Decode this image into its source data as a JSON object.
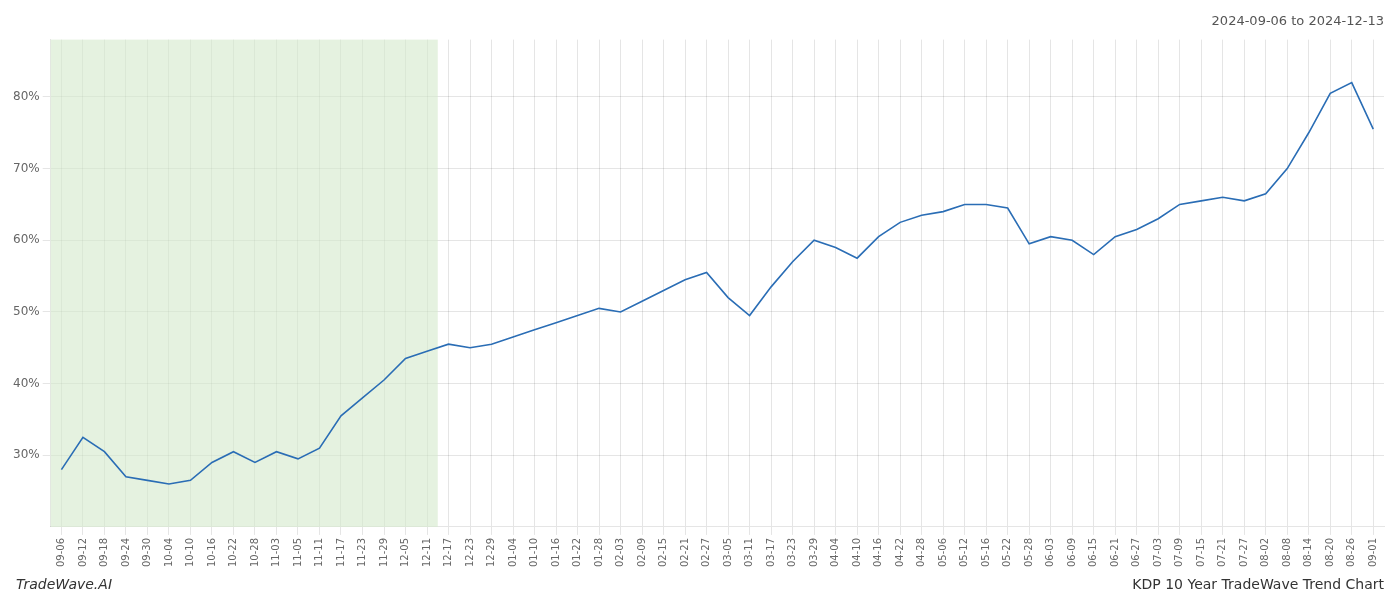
{
  "chart_data": {
    "type": "line",
    "title": "2024-09-06 to 2024-12-13",
    "annotations": [
      "TradeWave.AI",
      "KDP 10 Year TradeWave Trend Chart"
    ],
    "categories": [
      "09-06",
      "09-12",
      "09-18",
      "09-24",
      "09-30",
      "10-04",
      "10-10",
      "10-16",
      "10-22",
      "10-28",
      "11-03",
      "11-05",
      "11-11",
      "11-17",
      "11-23",
      "11-29",
      "12-05",
      "12-11",
      "12-17",
      "12-23",
      "12-29",
      "01-04",
      "01-10",
      "01-16",
      "01-22",
      "01-28",
      "02-03",
      "02-09",
      "02-15",
      "02-21",
      "02-27",
      "03-05",
      "03-11",
      "03-17",
      "03-23",
      "03-29",
      "04-04",
      "04-10",
      "04-16",
      "04-22",
      "04-28",
      "05-06",
      "05-12",
      "05-16",
      "05-22",
      "05-28",
      "06-03",
      "06-09",
      "06-15",
      "06-21",
      "06-27",
      "07-03",
      "07-09",
      "07-15",
      "07-21",
      "07-27",
      "08-02",
      "08-08",
      "08-14",
      "08-20",
      "08-26",
      "09-01"
    ],
    "values": [
      28.0,
      32.5,
      30.5,
      27.0,
      26.5,
      26.0,
      26.5,
      29.0,
      30.5,
      29.0,
      30.5,
      29.5,
      31.0,
      35.5,
      38.0,
      40.5,
      43.5,
      44.5,
      45.5,
      45.0,
      45.5,
      46.5,
      47.5,
      48.5,
      49.5,
      50.5,
      50.0,
      51.5,
      53.0,
      54.5,
      55.5,
      52.0,
      49.5,
      53.5,
      57.0,
      60.0,
      59.0,
      57.5,
      60.5,
      62.5,
      63.5,
      64.0,
      65.0,
      65.0,
      64.5,
      59.5,
      60.5,
      60.0,
      58.0,
      60.5,
      61.5,
      63.0,
      65.0,
      65.5,
      66.0,
      65.5,
      66.5,
      70.0,
      75.0,
      80.5,
      82.0,
      75.5
    ],
    "color": "#2a6db5",
    "shaded_range": {
      "from": "09-06",
      "to": "12-11",
      "color": "#d4eacc"
    },
    "ylim": [
      20,
      88
    ],
    "yticks": [
      {
        "value": 30,
        "label": "30%"
      },
      {
        "value": 40,
        "label": "40%"
      },
      {
        "value": 50,
        "label": "50%"
      },
      {
        "value": 60,
        "label": "60%"
      },
      {
        "value": 70,
        "label": "70%"
      },
      {
        "value": 80,
        "label": "80%"
      }
    ],
    "grid": true
  }
}
